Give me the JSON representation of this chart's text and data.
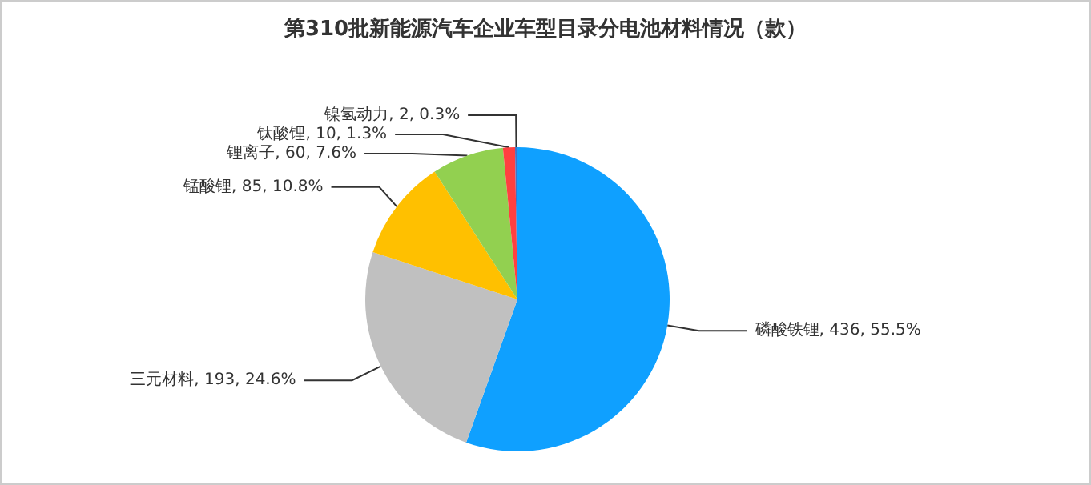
{
  "chart_data": {
    "type": "pie",
    "title": "第310批新能源汽车企业车型目录分电池材料情况（款）",
    "categories": [
      "磷酸铁锂",
      "三元材料",
      "锰酸锂",
      "锂离子",
      "钛酸锂",
      "镍氢动力"
    ],
    "values": [
      436,
      193,
      85,
      60,
      10,
      2
    ],
    "value_labels": [
      "436, 55.5%",
      "193, 24.6%",
      "85, 10.8%",
      "60, 7.6%",
      "10, 1.3%",
      "2, 0.3%"
    ],
    "colors": [
      "#0fa0ff",
      "#c0c0c0",
      "#ffc000",
      "#92d050",
      "#ff4040",
      "#4472c4"
    ],
    "legend": false
  }
}
